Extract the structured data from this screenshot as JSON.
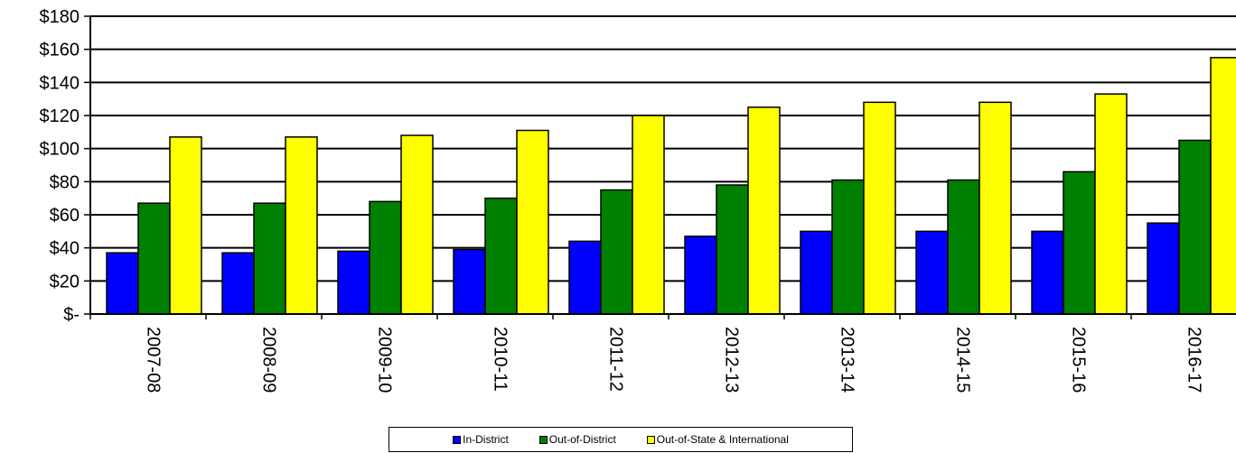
{
  "chart_data": {
    "type": "bar",
    "title": "",
    "xlabel": "",
    "ylabel": "",
    "categories": [
      "2007-08",
      "2008-09",
      "2009-10",
      "2010-11",
      "2011-12",
      "2012-13",
      "2013-14",
      "2014-15",
      "2015-16",
      "2016-17"
    ],
    "series": [
      {
        "name": "In-District",
        "color": "#0000ff",
        "values": [
          37,
          37,
          38,
          39,
          44,
          47,
          50,
          50,
          50,
          55
        ]
      },
      {
        "name": "Out-of-District",
        "color": "#008000",
        "values": [
          67,
          67,
          68,
          70,
          75,
          78,
          81,
          81,
          86,
          105
        ]
      },
      {
        "name": "Out-of-State & International",
        "color": "#ffff00",
        "values": [
          107,
          107,
          108,
          111,
          120,
          125,
          128,
          128,
          133,
          155
        ]
      }
    ],
    "ylim": [
      0,
      180
    ],
    "yticks": [
      0,
      20,
      40,
      60,
      80,
      100,
      120,
      140,
      160,
      180
    ],
    "ytick_labels": [
      "$-",
      "$20",
      "$40",
      "$60",
      "$80",
      "$100",
      "$120",
      "$140",
      "$160",
      "$180"
    ],
    "grid": true,
    "legend_position": "bottom"
  }
}
